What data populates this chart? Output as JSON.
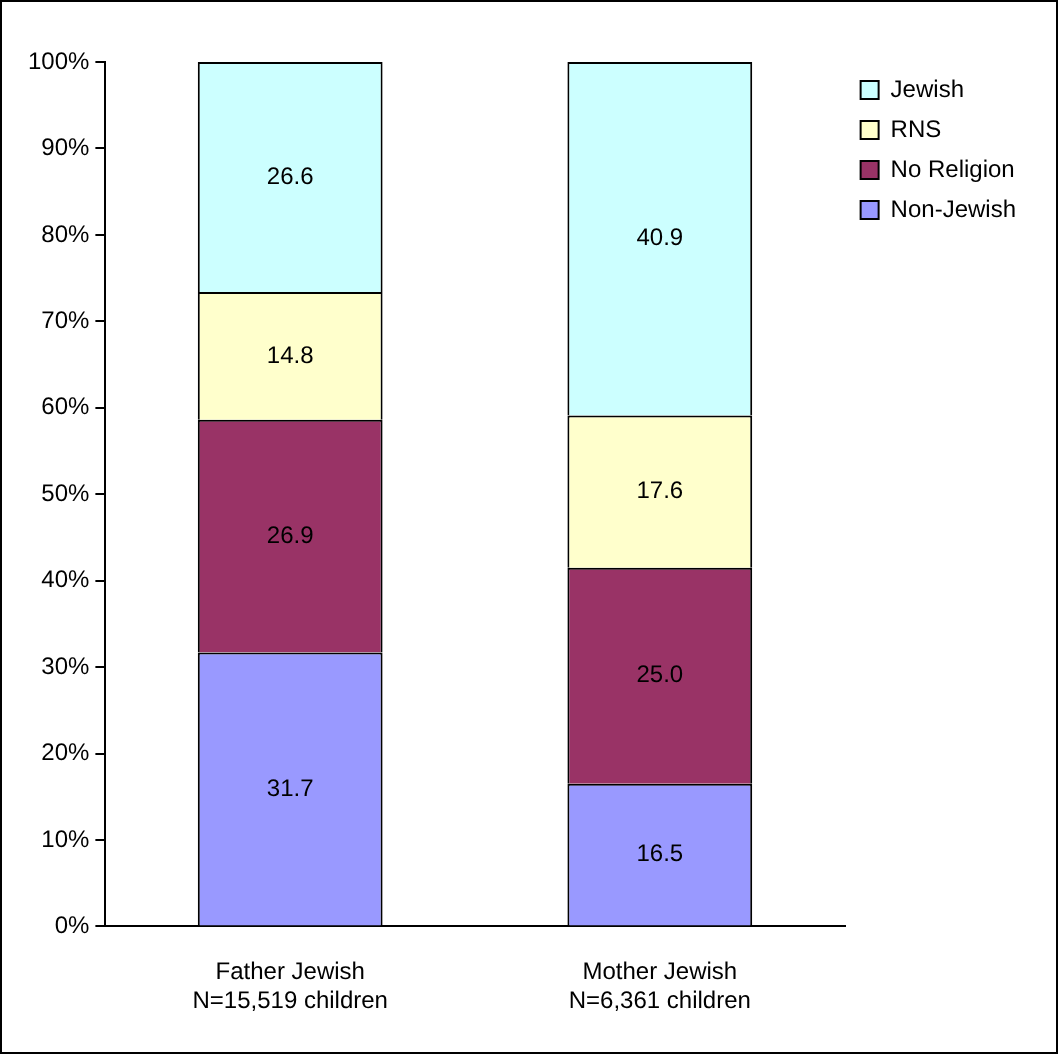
{
  "chart_data": {
    "type": "bar",
    "stacked": true,
    "categories": [
      "Father Jewish\nN=15,519 children",
      "Mother Jewish\nN=6,361 children"
    ],
    "series": [
      {
        "name": "Non-Jewish",
        "color": "#9999ff",
        "values": [
          31.7,
          16.5
        ],
        "value_labels": [
          "31.7",
          "16.5"
        ]
      },
      {
        "name": "No Religion",
        "color": "#993366",
        "values": [
          26.9,
          25.0
        ],
        "value_labels": [
          "26.9",
          "25.0"
        ]
      },
      {
        "name": "RNS",
        "color": "#ffffcc",
        "values": [
          14.8,
          17.6
        ],
        "value_labels": [
          "14.8",
          "17.6"
        ]
      },
      {
        "name": "Jewish",
        "color": "#ccffff",
        "values": [
          26.6,
          40.9
        ],
        "value_labels": [
          "26.6",
          "40.9"
        ]
      }
    ],
    "ylim": [
      0,
      100
    ],
    "yticks": [
      {
        "value": 0,
        "label": "0%"
      },
      {
        "value": 10,
        "label": "10%"
      },
      {
        "value": 20,
        "label": "20%"
      },
      {
        "value": 30,
        "label": "30%"
      },
      {
        "value": 40,
        "label": "40%"
      },
      {
        "value": 50,
        "label": "50%"
      },
      {
        "value": 60,
        "label": "60%"
      },
      {
        "value": 70,
        "label": "70%"
      },
      {
        "value": 80,
        "label": "80%"
      },
      {
        "value": 90,
        "label": "90%"
      },
      {
        "value": 100,
        "label": "100%"
      }
    ],
    "grid": false,
    "legend": "top right"
  }
}
